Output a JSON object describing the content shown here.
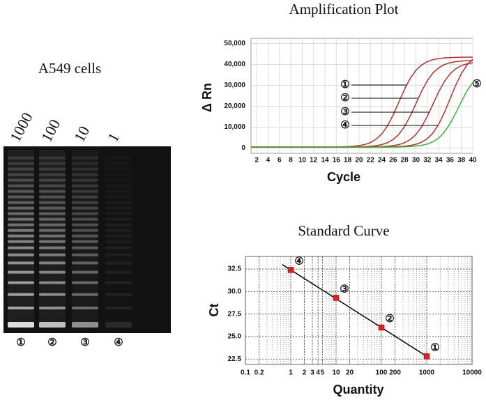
{
  "gel": {
    "title": "A549 cells",
    "lanes": [
      "1000",
      "100",
      "10",
      "1"
    ],
    "lane_markers": [
      "①",
      "②",
      "③",
      "④"
    ]
  },
  "chart_data": [
    {
      "type": "line",
      "title": "Amplification Plot",
      "x_label": "Cycle",
      "y_label": "Δ Rn",
      "x": [
        1,
        2,
        3,
        4,
        5,
        6,
        7,
        8,
        9,
        10,
        11,
        12,
        13,
        14,
        15,
        16,
        17,
        18,
        19,
        20,
        21,
        22,
        23,
        24,
        25,
        26,
        27,
        28,
        29,
        30,
        31,
        32,
        33,
        34,
        35,
        36,
        37,
        38,
        39,
        40
      ],
      "xlim": [
        1,
        40
      ],
      "xticks": [
        2,
        4,
        6,
        8,
        10,
        12,
        14,
        16,
        18,
        20,
        22,
        24,
        26,
        28,
        30,
        32,
        34,
        36,
        38,
        40
      ],
      "ylim": [
        -2500,
        52500
      ],
      "yticks": [
        0,
        {
          "value": 10000,
          "label": "10,000"
        },
        {
          "value": 20000,
          "label": "20,000"
        },
        {
          "value": 30000,
          "label": "30,000"
        },
        {
          "value": 40000,
          "label": "40,000"
        },
        {
          "value": 50000,
          "label": "50,000"
        }
      ],
      "grid": true,
      "series": [
        {
          "label": "①",
          "color": "#b3302b",
          "values": [
            500,
            500,
            500,
            500,
            500,
            500,
            500,
            500,
            500,
            500,
            500,
            500,
            500,
            500,
            500,
            500,
            620,
            720,
            890,
            1190,
            1700,
            2650,
            4240,
            6780,
            10650,
            15850,
            22000,
            28150,
            33350,
            37220,
            39760,
            41350,
            42300,
            42810,
            43110,
            43290,
            43370,
            43450,
            43480,
            43500
          ]
        },
        {
          "label": "②",
          "color": "#b3302b",
          "values": [
            500,
            500,
            500,
            500,
            500,
            500,
            500,
            500,
            500,
            500,
            500,
            500,
            500,
            500,
            500,
            500,
            500,
            500,
            500,
            620,
            710,
            870,
            1160,
            1660,
            2580,
            4110,
            6560,
            10290,
            15320,
            21250,
            27190,
            32210,
            35940,
            38390,
            39930,
            40840,
            41340,
            41630,
            41790,
            41880
          ]
        },
        {
          "label": "③",
          "color": "#b3302b",
          "values": [
            500,
            500,
            500,
            500,
            500,
            500,
            500,
            500,
            500,
            500,
            500,
            500,
            500,
            500,
            500,
            500,
            500,
            500,
            500,
            500,
            500,
            500,
            620,
            710,
            870,
            1160,
            1650,
            2550,
            4070,
            6490,
            10180,
            15140,
            21000,
            26860,
            31820,
            35510,
            37930,
            39450,
            40340,
            40840
          ]
        },
        {
          "label": "④",
          "color": "#b3302b",
          "values": [
            500,
            500,
            500,
            500,
            500,
            500,
            500,
            500,
            500,
            500,
            500,
            500,
            500,
            500,
            500,
            500,
            500,
            500,
            500,
            500,
            500,
            500,
            500,
            500,
            500,
            630,
            730,
            910,
            1240,
            1790,
            2800,
            4500,
            7220,
            11360,
            16920,
            23500,
            30080,
            35640,
            39780,
            42500
          ]
        },
        {
          "label": "⑤",
          "color": "#33b233",
          "values": [
            500,
            500,
            500,
            500,
            500,
            500,
            500,
            500,
            500,
            500,
            500,
            500,
            500,
            500,
            500,
            500,
            500,
            500,
            500,
            500,
            500,
            500,
            500,
            500,
            500,
            500,
            500,
            640,
            760,
            960,
            1310,
            1930,
            3010,
            4790,
            7610,
            11600,
            16730,
            22270,
            27400,
            31390
          ]
        }
      ]
    },
    {
      "type": "scatter",
      "title": "Standard Curve",
      "x_label": "Quantity",
      "y_label": "Ct",
      "x_scale": "log",
      "xlim": [
        0.1,
        10000
      ],
      "xticks": [
        0.1,
        0.2,
        1,
        2,
        3,
        4,
        5,
        10,
        20,
        100,
        200,
        1000,
        10000
      ],
      "ylim": [
        21.9,
        33.9
      ],
      "yticks": [
        22.5,
        {
          "value": 25,
          "label": "25.0"
        },
        27.5,
        {
          "value": 30,
          "label": "30.0"
        },
        32.5
      ],
      "grid": true,
      "x": [
        1,
        10,
        100,
        1000
      ],
      "values": [
        32.4,
        29.3,
        26.0,
        22.8
      ],
      "point_labels": [
        "④",
        "③",
        "②",
        "①"
      ],
      "color": "#e02020",
      "fit": {
        "x": [
          0.65,
          1000
        ],
        "values": [
          33.0,
          22.8
        ],
        "color": "#000000"
      }
    }
  ]
}
